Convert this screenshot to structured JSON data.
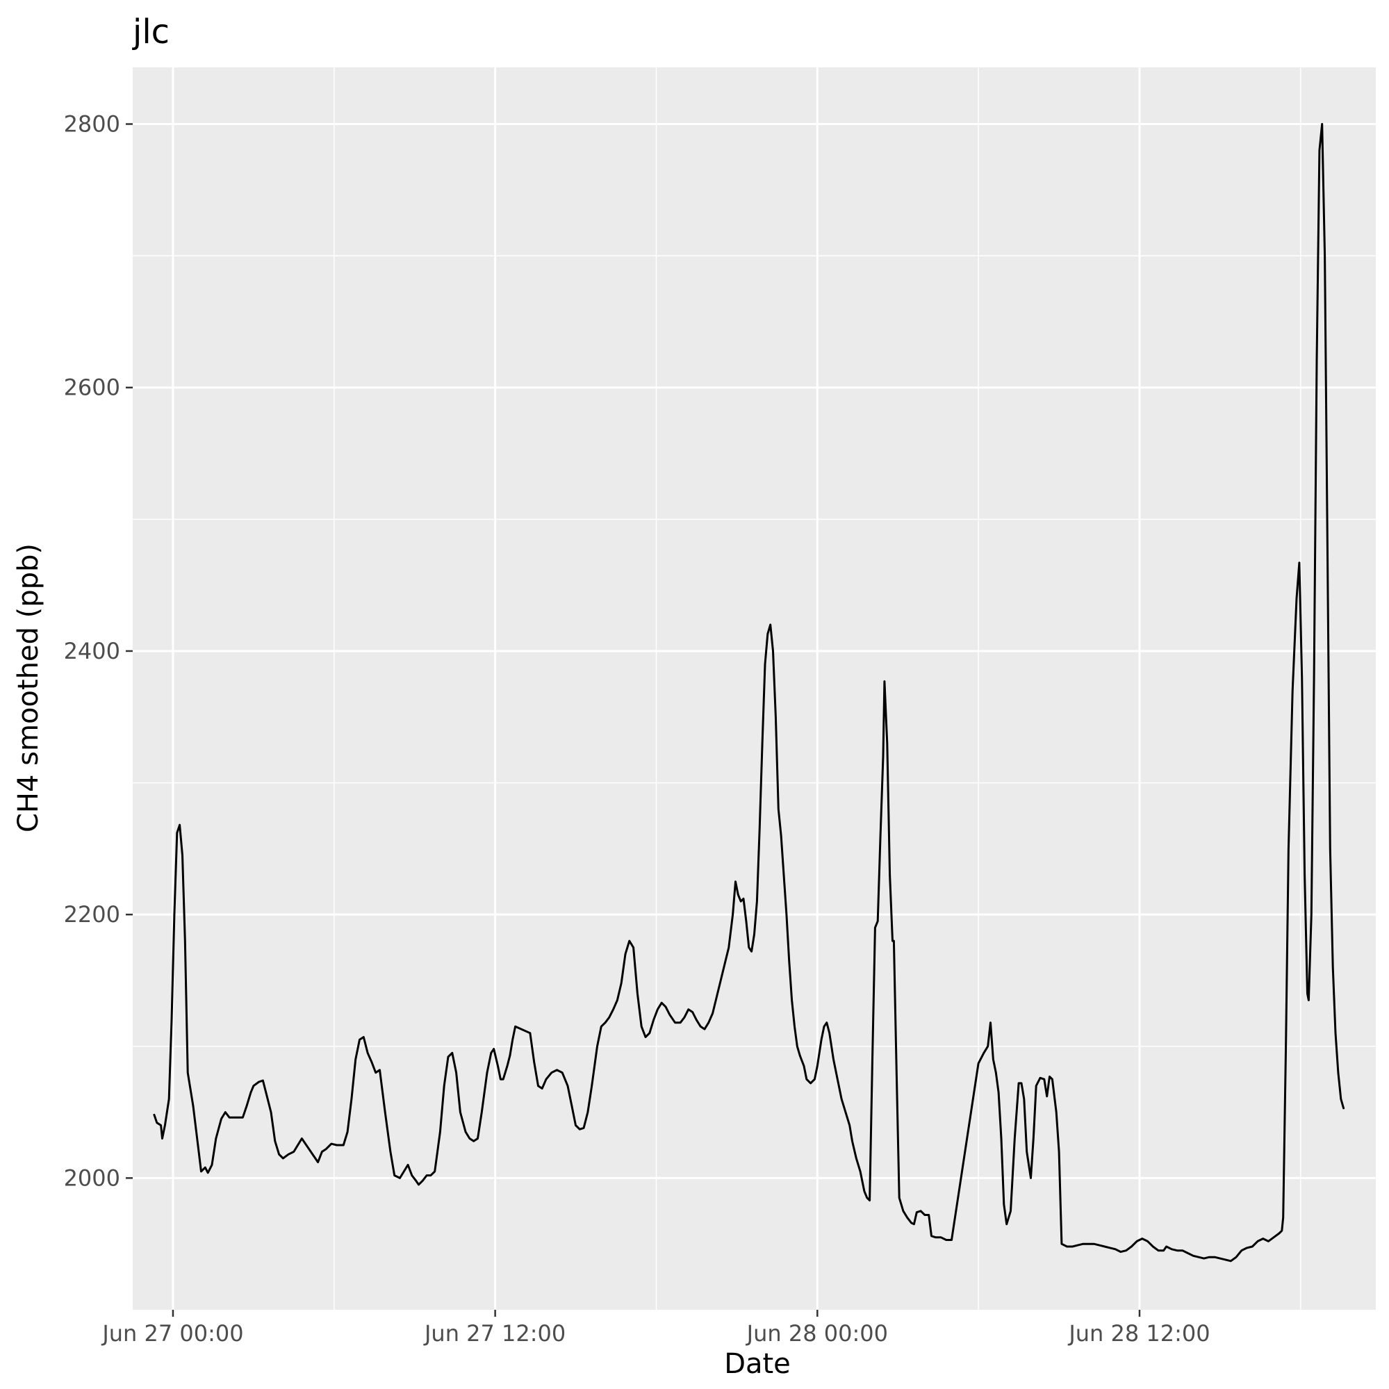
{
  "chart_data": {
    "type": "line",
    "title": "jlc",
    "xlabel": "Date",
    "ylabel": "CH4 smoothed (ppb)",
    "x_unit": "hours since Jun 27 00:00",
    "xlim": [
      -1.5,
      44.8
    ],
    "ylim": [
      1900,
      2843
    ],
    "x_ticks": [
      {
        "value": 0,
        "label": "Jun 27 00:00"
      },
      {
        "value": 12,
        "label": "Jun 27 12:00"
      },
      {
        "value": 24,
        "label": "Jun 28 00:00"
      },
      {
        "value": 36,
        "label": "Jun 28 12:00"
      }
    ],
    "x_minor": [
      6,
      18,
      30,
      42
    ],
    "y_ticks": [
      {
        "value": 2000,
        "label": "2000"
      },
      {
        "value": 2200,
        "label": "2200"
      },
      {
        "value": 2400,
        "label": "2400"
      },
      {
        "value": 2600,
        "label": "2600"
      },
      {
        "value": 2800,
        "label": "2800"
      }
    ],
    "y_minor": [
      2100,
      2300,
      2500,
      2700
    ],
    "grid": true,
    "series": [
      {
        "color": "#000000",
        "width": 3,
        "points": [
          [
            -0.7,
            2048
          ],
          [
            -0.6,
            2042
          ],
          [
            -0.45,
            2040
          ],
          [
            -0.4,
            2030
          ],
          [
            -0.3,
            2040
          ],
          [
            -0.15,
            2060
          ],
          [
            -0.05,
            2120
          ],
          [
            0.05,
            2200
          ],
          [
            0.15,
            2262
          ],
          [
            0.25,
            2268
          ],
          [
            0.35,
            2245
          ],
          [
            0.45,
            2180
          ],
          [
            0.55,
            2080
          ],
          [
            0.75,
            2055
          ],
          [
            0.9,
            2030
          ],
          [
            1.05,
            2005
          ],
          [
            1.2,
            2008
          ],
          [
            1.3,
            2004
          ],
          [
            1.45,
            2010
          ],
          [
            1.6,
            2030
          ],
          [
            1.8,
            2045
          ],
          [
            1.95,
            2050
          ],
          [
            2.1,
            2046
          ],
          [
            2.4,
            2046
          ],
          [
            2.6,
            2046
          ],
          [
            2.75,
            2055
          ],
          [
            2.9,
            2065
          ],
          [
            3.0,
            2070
          ],
          [
            3.2,
            2073
          ],
          [
            3.35,
            2074
          ],
          [
            3.5,
            2062
          ],
          [
            3.65,
            2050
          ],
          [
            3.8,
            2028
          ],
          [
            3.95,
            2018
          ],
          [
            4.1,
            2015
          ],
          [
            4.3,
            2018
          ],
          [
            4.5,
            2020
          ],
          [
            4.65,
            2025
          ],
          [
            4.8,
            2030
          ],
          [
            5.4,
            2012
          ],
          [
            5.55,
            2020
          ],
          [
            5.7,
            2022
          ],
          [
            5.9,
            2026
          ],
          [
            6.1,
            2025
          ],
          [
            6.35,
            2025
          ],
          [
            6.5,
            2035
          ],
          [
            6.65,
            2060
          ],
          [
            6.8,
            2090
          ],
          [
            6.95,
            2105
          ],
          [
            7.1,
            2107
          ],
          [
            7.25,
            2095
          ],
          [
            7.4,
            2088
          ],
          [
            7.55,
            2080
          ],
          [
            7.7,
            2082
          ],
          [
            7.9,
            2050
          ],
          [
            8.1,
            2020
          ],
          [
            8.25,
            2002
          ],
          [
            8.45,
            2000
          ],
          [
            8.6,
            2005
          ],
          [
            8.75,
            2010
          ],
          [
            8.9,
            2002
          ],
          [
            9.05,
            1998
          ],
          [
            9.15,
            1995
          ],
          [
            9.3,
            1998
          ],
          [
            9.45,
            2002
          ],
          [
            9.6,
            2002
          ],
          [
            9.75,
            2005
          ],
          [
            9.95,
            2035
          ],
          [
            10.1,
            2070
          ],
          [
            10.25,
            2092
          ],
          [
            10.4,
            2095
          ],
          [
            10.55,
            2080
          ],
          [
            10.7,
            2050
          ],
          [
            10.9,
            2035
          ],
          [
            11.05,
            2030
          ],
          [
            11.2,
            2028
          ],
          [
            11.35,
            2030
          ],
          [
            11.5,
            2050
          ],
          [
            11.7,
            2080
          ],
          [
            11.85,
            2095
          ],
          [
            11.95,
            2098
          ],
          [
            12.1,
            2085
          ],
          [
            12.2,
            2075
          ],
          [
            12.3,
            2075
          ],
          [
            12.45,
            2085
          ],
          [
            12.55,
            2093
          ],
          [
            12.65,
            2105
          ],
          [
            12.75,
            2115
          ],
          [
            13.3,
            2110
          ],
          [
            13.45,
            2088
          ],
          [
            13.6,
            2070
          ],
          [
            13.75,
            2068
          ],
          [
            13.9,
            2075
          ],
          [
            14.1,
            2080
          ],
          [
            14.3,
            2082
          ],
          [
            14.5,
            2080
          ],
          [
            14.7,
            2070
          ],
          [
            14.85,
            2055
          ],
          [
            15.0,
            2040
          ],
          [
            15.15,
            2037
          ],
          [
            15.3,
            2038
          ],
          [
            15.45,
            2050
          ],
          [
            15.6,
            2070
          ],
          [
            15.8,
            2100
          ],
          [
            15.95,
            2115
          ],
          [
            16.1,
            2118
          ],
          [
            16.25,
            2122
          ],
          [
            16.4,
            2128
          ],
          [
            16.55,
            2135
          ],
          [
            16.7,
            2148
          ],
          [
            16.85,
            2170
          ],
          [
            17.0,
            2180
          ],
          [
            17.15,
            2175
          ],
          [
            17.3,
            2140
          ],
          [
            17.45,
            2115
          ],
          [
            17.6,
            2107
          ],
          [
            17.75,
            2110
          ],
          [
            17.9,
            2120
          ],
          [
            18.05,
            2128
          ],
          [
            18.2,
            2133
          ],
          [
            18.35,
            2130
          ],
          [
            18.5,
            2124
          ],
          [
            18.7,
            2118
          ],
          [
            18.9,
            2118
          ],
          [
            19.05,
            2122
          ],
          [
            19.2,
            2128
          ],
          [
            19.35,
            2126
          ],
          [
            19.5,
            2120
          ],
          [
            19.65,
            2115
          ],
          [
            19.8,
            2113
          ],
          [
            19.95,
            2118
          ],
          [
            20.1,
            2125
          ],
          [
            20.7,
            2175
          ],
          [
            20.85,
            2200
          ],
          [
            20.95,
            2225
          ],
          [
            21.05,
            2215
          ],
          [
            21.15,
            2210
          ],
          [
            21.25,
            2212
          ],
          [
            21.35,
            2195
          ],
          [
            21.45,
            2175
          ],
          [
            21.55,
            2172
          ],
          [
            21.65,
            2185
          ],
          [
            21.75,
            2210
          ],
          [
            21.85,
            2265
          ],
          [
            21.95,
            2330
          ],
          [
            22.05,
            2390
          ],
          [
            22.15,
            2413
          ],
          [
            22.25,
            2420
          ],
          [
            22.35,
            2400
          ],
          [
            22.45,
            2350
          ],
          [
            22.55,
            2280
          ],
          [
            22.65,
            2260
          ],
          [
            22.75,
            2230
          ],
          [
            22.85,
            2200
          ],
          [
            22.95,
            2165
          ],
          [
            23.05,
            2135
          ],
          [
            23.15,
            2115
          ],
          [
            23.25,
            2100
          ],
          [
            23.35,
            2093
          ],
          [
            23.5,
            2085
          ],
          [
            23.6,
            2075
          ],
          [
            23.75,
            2072
          ],
          [
            23.9,
            2075
          ],
          [
            24.0,
            2085
          ],
          [
            24.15,
            2105
          ],
          [
            24.25,
            2115
          ],
          [
            24.35,
            2118
          ],
          [
            24.45,
            2110
          ],
          [
            24.6,
            2090
          ],
          [
            24.75,
            2075
          ],
          [
            24.9,
            2060
          ],
          [
            25.05,
            2050
          ],
          [
            25.2,
            2040
          ],
          [
            25.3,
            2028
          ],
          [
            25.45,
            2015
          ],
          [
            25.6,
            2005
          ],
          [
            25.75,
            1990
          ],
          [
            25.85,
            1985
          ],
          [
            25.95,
            1983
          ],
          [
            26.05,
            2090
          ],
          [
            26.15,
            2190
          ],
          [
            26.25,
            2195
          ],
          [
            26.35,
            2260
          ],
          [
            26.45,
            2320
          ],
          [
            26.5,
            2377
          ],
          [
            26.6,
            2330
          ],
          [
            26.7,
            2230
          ],
          [
            26.8,
            2180
          ],
          [
            26.85,
            2180
          ],
          [
            26.95,
            2080
          ],
          [
            27.05,
            1985
          ],
          [
            27.2,
            1975
          ],
          [
            27.35,
            1970
          ],
          [
            27.5,
            1966
          ],
          [
            27.6,
            1965
          ],
          [
            27.7,
            1974
          ],
          [
            27.85,
            1975
          ],
          [
            28.0,
            1972
          ],
          [
            28.15,
            1972
          ],
          [
            28.25,
            1956
          ],
          [
            28.4,
            1955
          ],
          [
            28.6,
            1955
          ],
          [
            28.8,
            1953
          ],
          [
            29.0,
            1953
          ],
          [
            30.0,
            2087
          ],
          [
            30.2,
            2095
          ],
          [
            30.35,
            2100
          ],
          [
            30.45,
            2118
          ],
          [
            30.55,
            2090
          ],
          [
            30.65,
            2080
          ],
          [
            30.75,
            2065
          ],
          [
            30.85,
            2030
          ],
          [
            30.95,
            1980
          ],
          [
            31.05,
            1965
          ],
          [
            31.2,
            1975
          ],
          [
            31.35,
            2030
          ],
          [
            31.5,
            2072
          ],
          [
            31.6,
            2072
          ],
          [
            31.7,
            2060
          ],
          [
            31.8,
            2020
          ],
          [
            31.95,
            2000
          ],
          [
            32.05,
            2030
          ],
          [
            32.15,
            2070
          ],
          [
            32.3,
            2076
          ],
          [
            32.45,
            2075
          ],
          [
            32.55,
            2062
          ],
          [
            32.65,
            2077
          ],
          [
            32.75,
            2075
          ],
          [
            32.9,
            2050
          ],
          [
            33.0,
            2020
          ],
          [
            33.1,
            1950
          ],
          [
            33.3,
            1948
          ],
          [
            33.5,
            1948
          ],
          [
            33.7,
            1949
          ],
          [
            33.9,
            1950
          ],
          [
            34.1,
            1950
          ],
          [
            34.3,
            1950
          ],
          [
            34.5,
            1949
          ],
          [
            34.7,
            1948
          ],
          [
            34.9,
            1947
          ],
          [
            35.1,
            1946
          ],
          [
            35.3,
            1944
          ],
          [
            35.5,
            1945
          ],
          [
            35.7,
            1948
          ],
          [
            35.9,
            1952
          ],
          [
            36.1,
            1954
          ],
          [
            36.3,
            1952
          ],
          [
            36.5,
            1948
          ],
          [
            36.7,
            1945
          ],
          [
            36.9,
            1945
          ],
          [
            37.0,
            1948
          ],
          [
            37.0,
            1948
          ],
          [
            37.2,
            1946
          ],
          [
            37.4,
            1945
          ],
          [
            37.6,
            1945
          ],
          [
            37.8,
            1943
          ],
          [
            38.0,
            1941
          ],
          [
            38.2,
            1940
          ],
          [
            38.4,
            1939
          ],
          [
            38.6,
            1940
          ],
          [
            38.8,
            1940
          ],
          [
            39.0,
            1939
          ],
          [
            39.2,
            1938
          ],
          [
            39.4,
            1937
          ],
          [
            39.6,
            1940
          ],
          [
            39.8,
            1945
          ],
          [
            40.0,
            1947
          ],
          [
            40.2,
            1948
          ],
          [
            40.4,
            1952
          ],
          [
            40.6,
            1954
          ],
          [
            40.8,
            1952
          ],
          [
            41.0,
            1955
          ],
          [
            41.2,
            1958
          ],
          [
            41.3,
            1960
          ],
          [
            41.35,
            1970
          ],
          [
            41.45,
            2100
          ],
          [
            41.55,
            2250
          ],
          [
            41.7,
            2370
          ],
          [
            41.85,
            2440
          ],
          [
            41.95,
            2467
          ],
          [
            42.05,
            2380
          ],
          [
            42.15,
            2230
          ],
          [
            42.25,
            2140
          ],
          [
            42.3,
            2135
          ],
          [
            42.4,
            2200
          ],
          [
            42.5,
            2380
          ],
          [
            42.6,
            2620
          ],
          [
            42.7,
            2780
          ],
          [
            42.8,
            2800
          ],
          [
            42.9,
            2700
          ],
          [
            43.0,
            2480
          ],
          [
            43.1,
            2250
          ],
          [
            43.2,
            2160
          ],
          [
            43.3,
            2110
          ],
          [
            43.4,
            2080
          ],
          [
            43.5,
            2060
          ],
          [
            43.6,
            2053
          ]
        ]
      },
      {
        "color": "#0000ff",
        "width": 5,
        "points": []
      }
    ]
  }
}
